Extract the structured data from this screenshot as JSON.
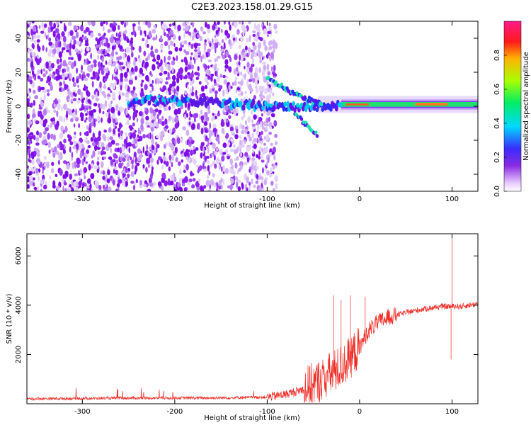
{
  "title": "C2E3.2023.158.01.29.G15",
  "colors": {
    "snr_line": "#ef2c25",
    "axis": "#000000"
  },
  "chart_data": [
    {
      "type": "heatmap",
      "xlabel": "Height of straight line (km)",
      "ylabel": "Frequency (Hz)",
      "xlim": [
        -360,
        128
      ],
      "ylim": [
        -50,
        50
      ],
      "xticks": [
        -300,
        -200,
        -100,
        0,
        100
      ],
      "yticks": [
        -40,
        -20,
        0,
        20,
        40
      ],
      "colorbar": {
        "label": "Normalized spectral amplitude",
        "range": [
          0,
          1
        ],
        "ticks": [
          "0.0",
          "0.2",
          "0.4",
          "0.6",
          "0.8"
        ],
        "colormap": "rainbow (white-violet-blue-cyan-green-yellow-red-magenta)"
      },
      "features": {
        "noise_region_x": [
          -360,
          -90
        ],
        "main_trace": [
          {
            "x": -250,
            "y": 1
          },
          {
            "x": -230,
            "y": 4
          },
          {
            "x": -210,
            "y": 3
          },
          {
            "x": -190,
            "y": 3
          },
          {
            "x": -150,
            "y": 2
          },
          {
            "x": -130,
            "y": 1
          },
          {
            "x": -100,
            "y": 0
          },
          {
            "x": -80,
            "y": 0
          },
          {
            "x": -60,
            "y": -1
          },
          {
            "x": -40,
            "y": 0
          },
          {
            "x": -20,
            "y": 1
          },
          {
            "x": 0,
            "y": 1
          },
          {
            "x": 50,
            "y": 1
          },
          {
            "x": 100,
            "y": 1
          },
          {
            "x": 128,
            "y": 1
          }
        ],
        "upper_branch": [
          {
            "x": -100,
            "y": 17
          },
          {
            "x": -85,
            "y": 12
          },
          {
            "x": -70,
            "y": 7
          },
          {
            "x": -55,
            "y": 4
          },
          {
            "x": -40,
            "y": 1
          }
        ],
        "lower_branch": [
          {
            "x": -70,
            "y": -4
          },
          {
            "x": -60,
            "y": -10
          },
          {
            "x": -45,
            "y": -17
          }
        ],
        "high_amplitude_x": [
          -20,
          128
        ]
      }
    },
    {
      "type": "line",
      "xlabel": "Height of straight line (km)",
      "ylabel": "SNR (10 * v/v)",
      "xlim": [
        -360,
        128
      ],
      "ylim": [
        0,
        6900
      ],
      "xticks": [
        -300,
        -200,
        -100,
        0,
        100
      ],
      "yticks": [
        2000,
        4000,
        6000
      ],
      "envelope": [
        {
          "x": -360,
          "y": 200
        },
        {
          "x": -250,
          "y": 230
        },
        {
          "x": -150,
          "y": 240
        },
        {
          "x": -100,
          "y": 270
        },
        {
          "x": -80,
          "y": 380
        },
        {
          "x": -60,
          "y": 600
        },
        {
          "x": -40,
          "y": 1000
        },
        {
          "x": -20,
          "y": 1500
        },
        {
          "x": 0,
          "y": 2300
        },
        {
          "x": 10,
          "y": 3000
        },
        {
          "x": 20,
          "y": 3300
        },
        {
          "x": 30,
          "y": 3500
        },
        {
          "x": 50,
          "y": 3700
        },
        {
          "x": 70,
          "y": 3850
        },
        {
          "x": 90,
          "y": 3950
        },
        {
          "x": 100,
          "y": 3950
        },
        {
          "x": 110,
          "y": 3950
        },
        {
          "x": 128,
          "y": 4050
        }
      ],
      "spikes": [
        {
          "x": -28,
          "y": 4400
        },
        {
          "x": -20,
          "y": 4200
        },
        {
          "x": -10,
          "y": 4400
        },
        {
          "x": 6,
          "y": 4350
        },
        {
          "x": 100,
          "y": 6900
        },
        {
          "x": 99,
          "y": 1800
        }
      ]
    }
  ]
}
